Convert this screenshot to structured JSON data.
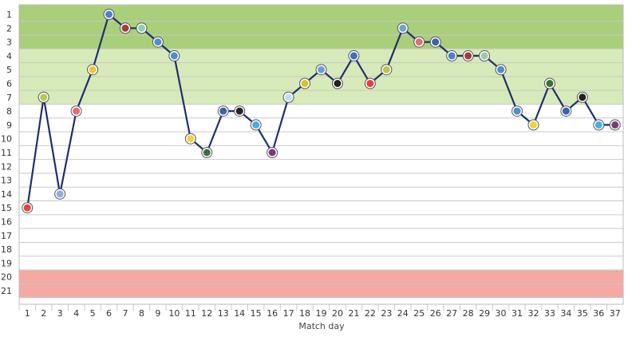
{
  "chart_data": {
    "type": "line",
    "xlabel": "Match day",
    "ylabel": "",
    "x": [
      1,
      2,
      3,
      4,
      5,
      6,
      7,
      8,
      9,
      10,
      11,
      12,
      13,
      14,
      15,
      16,
      17,
      18,
      19,
      20,
      21,
      22,
      23,
      24,
      25,
      26,
      27,
      28,
      29,
      30,
      31,
      32,
      33,
      34,
      35,
      36,
      37
    ],
    "y": [
      15,
      7,
      14,
      8,
      5,
      1,
      2,
      2,
      3,
      4,
      10,
      11,
      8,
      8,
      9,
      11,
      7,
      6,
      5,
      6,
      4,
      6,
      5,
      2,
      3,
      3,
      4,
      4,
      4,
      5,
      8,
      9,
      6,
      8,
      7,
      9,
      9
    ],
    "ylim": [
      21,
      1
    ],
    "y_ticks": [
      1,
      2,
      3,
      4,
      5,
      6,
      7,
      8,
      9,
      10,
      11,
      12,
      13,
      14,
      15,
      16,
      17,
      18,
      19,
      20,
      21
    ],
    "x_ticks": [
      1,
      2,
      3,
      4,
      5,
      6,
      7,
      8,
      9,
      10,
      11,
      12,
      13,
      14,
      15,
      16,
      17,
      18,
      19,
      20,
      21,
      22,
      23,
      24,
      25,
      26,
      27,
      28,
      29,
      30,
      31,
      32,
      33,
      34,
      35,
      36,
      37
    ],
    "zones": [
      {
        "from": 1,
        "to": 3,
        "color": "#a9cf7a"
      },
      {
        "from": 4,
        "to": 7,
        "color": "#d7eab9"
      },
      {
        "from": 20,
        "to": 21,
        "color": "#f4a9a3"
      }
    ],
    "grid": true,
    "line_color": "#1f2f6e",
    "marker_colors": [
      "#e8403b",
      "#b8c84a",
      "#8db0d9",
      "#e46d6d",
      "#f2c230",
      "#4f7fd1",
      "#a23b3b",
      "#8fcfb1",
      "#4f8ec9",
      "#4f8ec9",
      "#f2d23a",
      "#3e6e3a",
      "#3b63a8",
      "#222222",
      "#45b0e0",
      "#7a3a7a",
      "#bfe1ef",
      "#d6c22a",
      "#6aa0d5",
      "#222222",
      "#3b6fc0",
      "#e8403b",
      "#b8c84a",
      "#6aa6c9",
      "#e46d6d",
      "#3b63a8",
      "#4f7fd1",
      "#a23b3b",
      "#8fcfb1",
      "#4f8ec9",
      "#4f8ec9",
      "#f2d23a",
      "#3e6e3a",
      "#3b63a8",
      "#222222",
      "#45b0e0",
      "#7a3a7a"
    ]
  }
}
